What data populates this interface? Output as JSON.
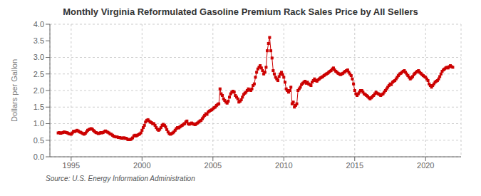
{
  "chart_data": {
    "type": "line",
    "title": "Monthly Virginia Reformulated Gasoline Premium Rack Sales Price by All Sellers",
    "y_label": "Dollars per Gallon",
    "source": "Source: U.S. Energy Information Administration",
    "color": "#cc0000",
    "marker": "square",
    "line_style": "solid",
    "grid": true,
    "xlim": [
      1993.5,
      2022.5
    ],
    "ylim": [
      0.0,
      4.0
    ],
    "xticks": [
      1995,
      2000,
      2005,
      2010,
      2015,
      2020
    ],
    "yticks": [
      {
        "value": 0.0,
        "label": "0.0"
      },
      0.5,
      {
        "value": 1.0,
        "label": "1.0"
      },
      1.5,
      {
        "value": 2.0,
        "label": "2.0"
      },
      2.5,
      {
        "value": 3.0,
        "label": "3.0"
      },
      3.5,
      {
        "value": 4.0,
        "label": "4.0"
      }
    ],
    "x": [
      1994.083,
      1994.167,
      1994.25,
      1994.333,
      1994.417,
      1994.5,
      1994.583,
      1994.667,
      1994.75,
      1994.833,
      1994.917,
      1995.0,
      1995.083,
      1995.167,
      1995.25,
      1995.333,
      1995.417,
      1995.5,
      1995.583,
      1995.667,
      1995.75,
      1995.833,
      1995.917,
      1996.0,
      1996.083,
      1996.167,
      1996.25,
      1996.333,
      1996.417,
      1996.5,
      1996.583,
      1996.667,
      1996.75,
      1996.833,
      1996.917,
      1997.0,
      1997.083,
      1997.167,
      1997.25,
      1997.333,
      1997.417,
      1997.5,
      1997.583,
      1997.667,
      1997.75,
      1997.833,
      1997.917,
      1998.0,
      1998.083,
      1998.167,
      1998.25,
      1998.333,
      1998.417,
      1998.5,
      1998.583,
      1998.667,
      1998.75,
      1998.833,
      1998.917,
      1999.0,
      1999.083,
      1999.167,
      1999.25,
      1999.333,
      1999.417,
      1999.5,
      1999.583,
      1999.667,
      1999.75,
      1999.833,
      1999.917,
      2000.0,
      2000.083,
      2000.167,
      2000.25,
      2000.333,
      2000.417,
      2000.5,
      2000.583,
      2000.667,
      2000.75,
      2000.833,
      2000.917,
      2001.0,
      2001.083,
      2001.167,
      2001.25,
      2001.333,
      2001.417,
      2001.5,
      2001.583,
      2001.667,
      2001.75,
      2001.833,
      2001.917,
      2002.0,
      2002.083,
      2002.167,
      2002.25,
      2002.333,
      2002.417,
      2002.5,
      2002.583,
      2002.667,
      2002.75,
      2002.833,
      2002.917,
      2003.0,
      2003.083,
      2003.167,
      2003.25,
      2003.333,
      2003.417,
      2003.5,
      2003.583,
      2003.667,
      2003.75,
      2003.833,
      2003.917,
      2004.0,
      2004.083,
      2004.167,
      2004.25,
      2004.333,
      2004.417,
      2004.5,
      2004.583,
      2004.667,
      2004.75,
      2004.833,
      2004.917,
      2005.0,
      2005.083,
      2005.167,
      2005.25,
      2005.333,
      2005.417,
      2005.5,
      2005.583,
      2005.667,
      2005.75,
      2005.833,
      2005.917,
      2006.0,
      2006.083,
      2006.167,
      2006.25,
      2006.333,
      2006.417,
      2006.5,
      2006.583,
      2006.667,
      2006.75,
      2006.833,
      2006.917,
      2007.0,
      2007.083,
      2007.167,
      2007.25,
      2007.333,
      2007.417,
      2007.5,
      2007.583,
      2007.667,
      2007.75,
      2007.833,
      2007.917,
      2008.0,
      2008.083,
      2008.167,
      2008.25,
      2008.333,
      2008.417,
      2008.5,
      2008.583,
      2008.667,
      2008.75,
      2008.833,
      2008.917,
      2009.0,
      2009.083,
      2009.167,
      2009.25,
      2009.333,
      2009.417,
      2009.5,
      2009.583,
      2009.667,
      2009.75,
      2009.833,
      2009.917,
      2010.0,
      2010.083,
      2010.167,
      2010.25,
      2010.333,
      2010.417,
      2010.5,
      2010.583,
      2010.667,
      2010.75,
      2010.833,
      2010.917,
      2011.0,
      2011.083,
      2011.167,
      2011.25,
      2011.333,
      2011.417,
      2011.5,
      2011.583,
      2011.667,
      2011.75,
      2011.833,
      2011.917,
      2012.0,
      2012.083,
      2012.167,
      2012.25,
      2012.333,
      2012.417,
      2012.5,
      2012.583,
      2012.667,
      2012.75,
      2012.833,
      2012.917,
      2013.0,
      2013.083,
      2013.167,
      2013.25,
      2013.333,
      2013.417,
      2013.5,
      2013.583,
      2013.667,
      2013.75,
      2013.833,
      2013.917,
      2014.0,
      2014.083,
      2014.167,
      2014.25,
      2014.333,
      2014.417,
      2014.5,
      2014.583,
      2014.667,
      2014.75,
      2014.833,
      2014.917,
      2015.0,
      2015.083,
      2015.167,
      2015.25,
      2015.333,
      2015.417,
      2015.5,
      2015.583,
      2015.667,
      2015.75,
      2015.833,
      2015.917,
      2016.0,
      2016.083,
      2016.167,
      2016.25,
      2016.333,
      2016.417,
      2016.5,
      2016.583,
      2016.667,
      2016.75,
      2016.833,
      2016.917,
      2017.0,
      2017.083,
      2017.167,
      2017.25,
      2017.333,
      2017.417,
      2017.5,
      2017.583,
      2017.667,
      2017.75,
      2017.833,
      2017.917,
      2018.0,
      2018.083,
      2018.167,
      2018.25,
      2018.333,
      2018.417,
      2018.5,
      2018.583,
      2018.667,
      2018.75,
      2018.833,
      2018.917,
      2019.0,
      2019.083,
      2019.167,
      2019.25,
      2019.333,
      2019.417,
      2019.5,
      2019.583,
      2019.667,
      2019.75,
      2019.833,
      2019.917,
      2020.0,
      2020.083,
      2020.167,
      2020.25,
      2020.333,
      2020.417,
      2020.5,
      2020.583,
      2020.667,
      2020.75,
      2020.833,
      2020.917,
      2021.0,
      2021.083,
      2021.167,
      2021.25,
      2021.333,
      2021.417,
      2021.5,
      2021.583,
      2021.667,
      2021.75,
      2021.833,
      2021.917
    ],
    "values": [
      0.72,
      0.73,
      0.71,
      0.72,
      0.73,
      0.75,
      0.74,
      0.73,
      0.72,
      0.7,
      0.69,
      0.68,
      0.72,
      0.77,
      0.76,
      0.78,
      0.8,
      0.78,
      0.75,
      0.74,
      0.72,
      0.7,
      0.68,
      0.71,
      0.75,
      0.8,
      0.82,
      0.84,
      0.85,
      0.83,
      0.79,
      0.76,
      0.73,
      0.72,
      0.7,
      0.71,
      0.73,
      0.72,
      0.73,
      0.76,
      0.78,
      0.76,
      0.74,
      0.72,
      0.69,
      0.68,
      0.65,
      0.62,
      0.61,
      0.6,
      0.6,
      0.58,
      0.58,
      0.57,
      0.56,
      0.57,
      0.57,
      0.56,
      0.55,
      0.52,
      0.52,
      0.52,
      0.54,
      0.57,
      0.63,
      0.65,
      0.63,
      0.65,
      0.67,
      0.69,
      0.72,
      0.8,
      0.88,
      0.95,
      1.05,
      1.1,
      1.12,
      1.08,
      1.05,
      1.03,
      1.0,
      1.0,
      0.95,
      0.88,
      0.83,
      0.8,
      0.83,
      0.88,
      0.95,
      0.98,
      0.95,
      0.9,
      0.82,
      0.75,
      0.7,
      0.68,
      0.7,
      0.72,
      0.75,
      0.8,
      0.85,
      0.88,
      0.87,
      0.9,
      0.93,
      0.95,
      0.98,
      1.0,
      1.05,
      1.08,
      1.0,
      0.98,
      1.0,
      1.02,
      1.0,
      0.98,
      0.97,
      1.0,
      1.02,
      1.05,
      1.08,
      1.1,
      1.15,
      1.2,
      1.25,
      1.3,
      1.28,
      1.35,
      1.38,
      1.4,
      1.42,
      1.45,
      1.48,
      1.5,
      1.55,
      1.58,
      1.6,
      2.05,
      1.9,
      1.85,
      1.75,
      1.7,
      1.65,
      1.62,
      1.68,
      1.8,
      1.9,
      1.95,
      1.98,
      1.95,
      1.85,
      1.8,
      1.75,
      1.65,
      1.68,
      1.72,
      1.8,
      1.88,
      1.92,
      1.95,
      2.0,
      2.05,
      2.02,
      2.0,
      2.05,
      2.15,
      2.2,
      2.4,
      2.55,
      2.65,
      2.7,
      2.75,
      2.68,
      2.6,
      2.5,
      2.55,
      2.7,
      3.2,
      3.42,
      3.6,
      3.2,
      2.98,
      2.6,
      2.5,
      2.4,
      2.35,
      2.3,
      2.42,
      2.5,
      2.55,
      2.48,
      2.4,
      2.25,
      2.05,
      2.0,
      1.95,
      2.0,
      2.1,
      1.6,
      1.65,
      1.5,
      1.55,
      1.6,
      2.0,
      2.05,
      2.1,
      2.18,
      2.22,
      2.25,
      2.28,
      2.22,
      2.25,
      2.2,
      2.18,
      2.15,
      2.25,
      2.3,
      2.35,
      2.3,
      2.28,
      2.32,
      2.35,
      2.38,
      2.4,
      2.42,
      2.45,
      2.48,
      2.5,
      2.52,
      2.55,
      2.58,
      2.6,
      2.65,
      2.68,
      2.62,
      2.58,
      2.55,
      2.52,
      2.5,
      2.48,
      2.5,
      2.52,
      2.55,
      2.58,
      2.6,
      2.62,
      2.55,
      2.5,
      2.45,
      2.35,
      2.2,
      2.0,
      1.9,
      1.85,
      1.9,
      1.95,
      2.0,
      2.0,
      1.95,
      1.9,
      1.88,
      1.85,
      1.82,
      1.78,
      1.75,
      1.78,
      1.82,
      1.85,
      1.9,
      1.95,
      1.92,
      1.9,
      1.88,
      1.85,
      1.88,
      1.9,
      1.95,
      2.0,
      2.05,
      2.1,
      2.15,
      2.2,
      2.18,
      2.25,
      2.28,
      2.3,
      2.35,
      2.4,
      2.45,
      2.5,
      2.52,
      2.55,
      2.58,
      2.6,
      2.55,
      2.5,
      2.45,
      2.4,
      2.35,
      2.38,
      2.42,
      2.48,
      2.52,
      2.55,
      2.58,
      2.6,
      2.55,
      2.52,
      2.48,
      2.45,
      2.42,
      2.4,
      2.35,
      2.3,
      2.2,
      2.15,
      2.1,
      2.15,
      2.2,
      2.25,
      2.28,
      2.3,
      2.35,
      2.42,
      2.5,
      2.58,
      2.62,
      2.65,
      2.68,
      2.7,
      2.68,
      2.72,
      2.75,
      2.72,
      2.7
    ]
  }
}
